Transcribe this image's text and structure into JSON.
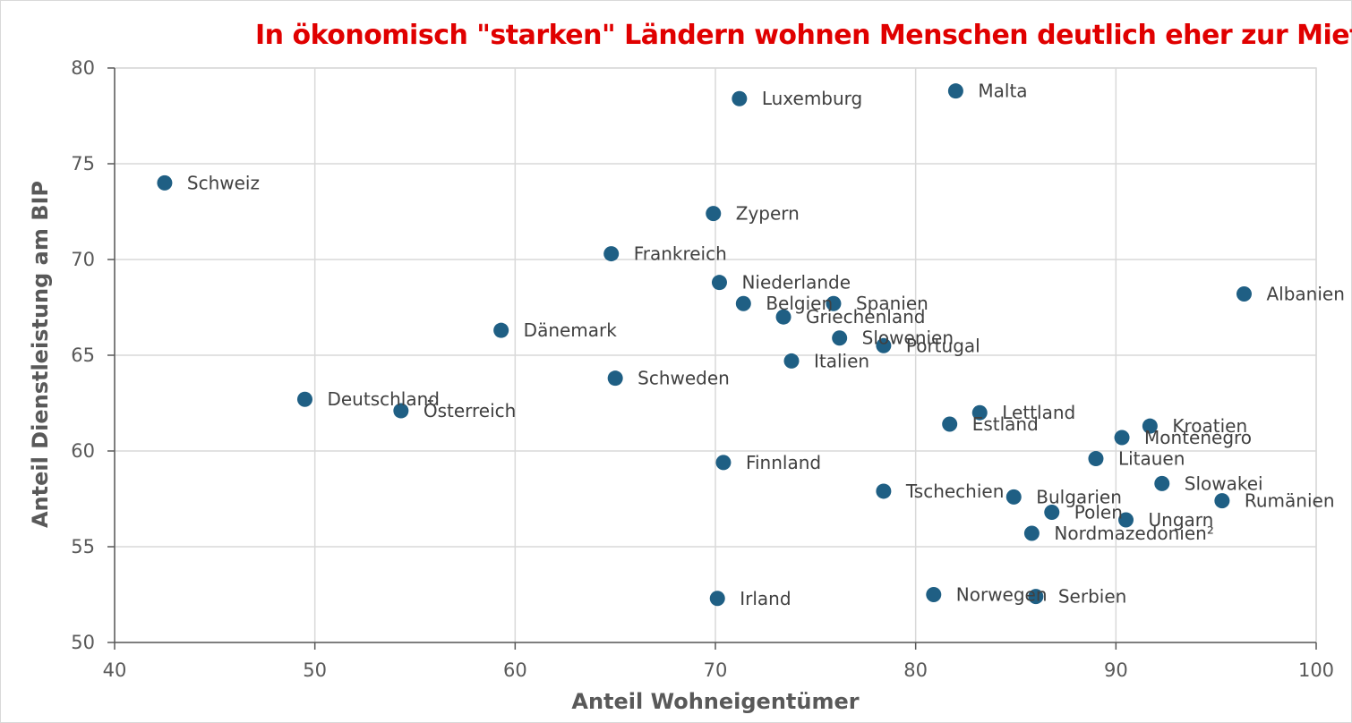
{
  "chart_data": {
    "type": "scatter",
    "title": "In ökonomisch \"starken\" Ländern wohnen Menschen deutlich eher zur Miete",
    "xlabel": "Anteil Wohneigentümer",
    "ylabel": "Anteil Dienstleistung am BIP",
    "xlim": [
      40,
      100
    ],
    "ylim": [
      50,
      80
    ],
    "xticks": [
      40,
      50,
      60,
      70,
      80,
      90,
      100
    ],
    "yticks": [
      50,
      55,
      60,
      65,
      70,
      75,
      80
    ],
    "grid": true,
    "marker_color": "#1f5f84",
    "title_color": "#e00000",
    "points": [
      {
        "label": "Schweiz",
        "x": 42.5,
        "y": 74.0
      },
      {
        "label": "Deutschland",
        "x": 49.5,
        "y": 62.7
      },
      {
        "label": "Österreich",
        "x": 54.3,
        "y": 62.1
      },
      {
        "label": "Dänemark",
        "x": 59.3,
        "y": 66.3
      },
      {
        "label": "Frankreich",
        "x": 64.8,
        "y": 70.3
      },
      {
        "label": "Schweden",
        "x": 65.0,
        "y": 63.8
      },
      {
        "label": "Zypern",
        "x": 69.9,
        "y": 72.4
      },
      {
        "label": "Irland",
        "x": 70.1,
        "y": 52.3
      },
      {
        "label": "Niederlande",
        "x": 70.2,
        "y": 68.8
      },
      {
        "label": "Finnland",
        "x": 70.4,
        "y": 59.4
      },
      {
        "label": "Luxemburg",
        "x": 71.2,
        "y": 78.4
      },
      {
        "label": "Belgien",
        "x": 71.4,
        "y": 67.7
      },
      {
        "label": "Griechenland",
        "x": 73.4,
        "y": 67.0
      },
      {
        "label": "Italien",
        "x": 73.8,
        "y": 64.7
      },
      {
        "label": "Spanien",
        "x": 75.9,
        "y": 67.7
      },
      {
        "label": "Slowenien",
        "x": 76.2,
        "y": 65.9
      },
      {
        "label": "Tschechien",
        "x": 78.4,
        "y": 57.9
      },
      {
        "label": "Portugal",
        "x": 78.4,
        "y": 65.5
      },
      {
        "label": "Norwegen",
        "x": 80.9,
        "y": 52.5
      },
      {
        "label": "Estland",
        "x": 81.7,
        "y": 61.4
      },
      {
        "label": "Malta",
        "x": 82.0,
        "y": 78.8
      },
      {
        "label": "Lettland",
        "x": 83.2,
        "y": 62.0
      },
      {
        "label": "Bulgarien",
        "x": 84.9,
        "y": 57.6
      },
      {
        "label": "Nordmazedonien²",
        "x": 85.8,
        "y": 55.7
      },
      {
        "label": "Serbien",
        "x": 86.0,
        "y": 52.4
      },
      {
        "label": "Polen",
        "x": 86.8,
        "y": 56.8
      },
      {
        "label": "Litauen",
        "x": 89.0,
        "y": 59.6
      },
      {
        "label": "Montenegro",
        "x": 90.3,
        "y": 60.7
      },
      {
        "label": "Ungarn",
        "x": 90.5,
        "y": 56.4
      },
      {
        "label": "Kroatien",
        "x": 91.7,
        "y": 61.3
      },
      {
        "label": "Slowakei",
        "x": 92.3,
        "y": 58.3
      },
      {
        "label": "Rumänien",
        "x": 95.3,
        "y": 57.4
      },
      {
        "label": "Albanien",
        "x": 96.4,
        "y": 68.2
      }
    ]
  }
}
